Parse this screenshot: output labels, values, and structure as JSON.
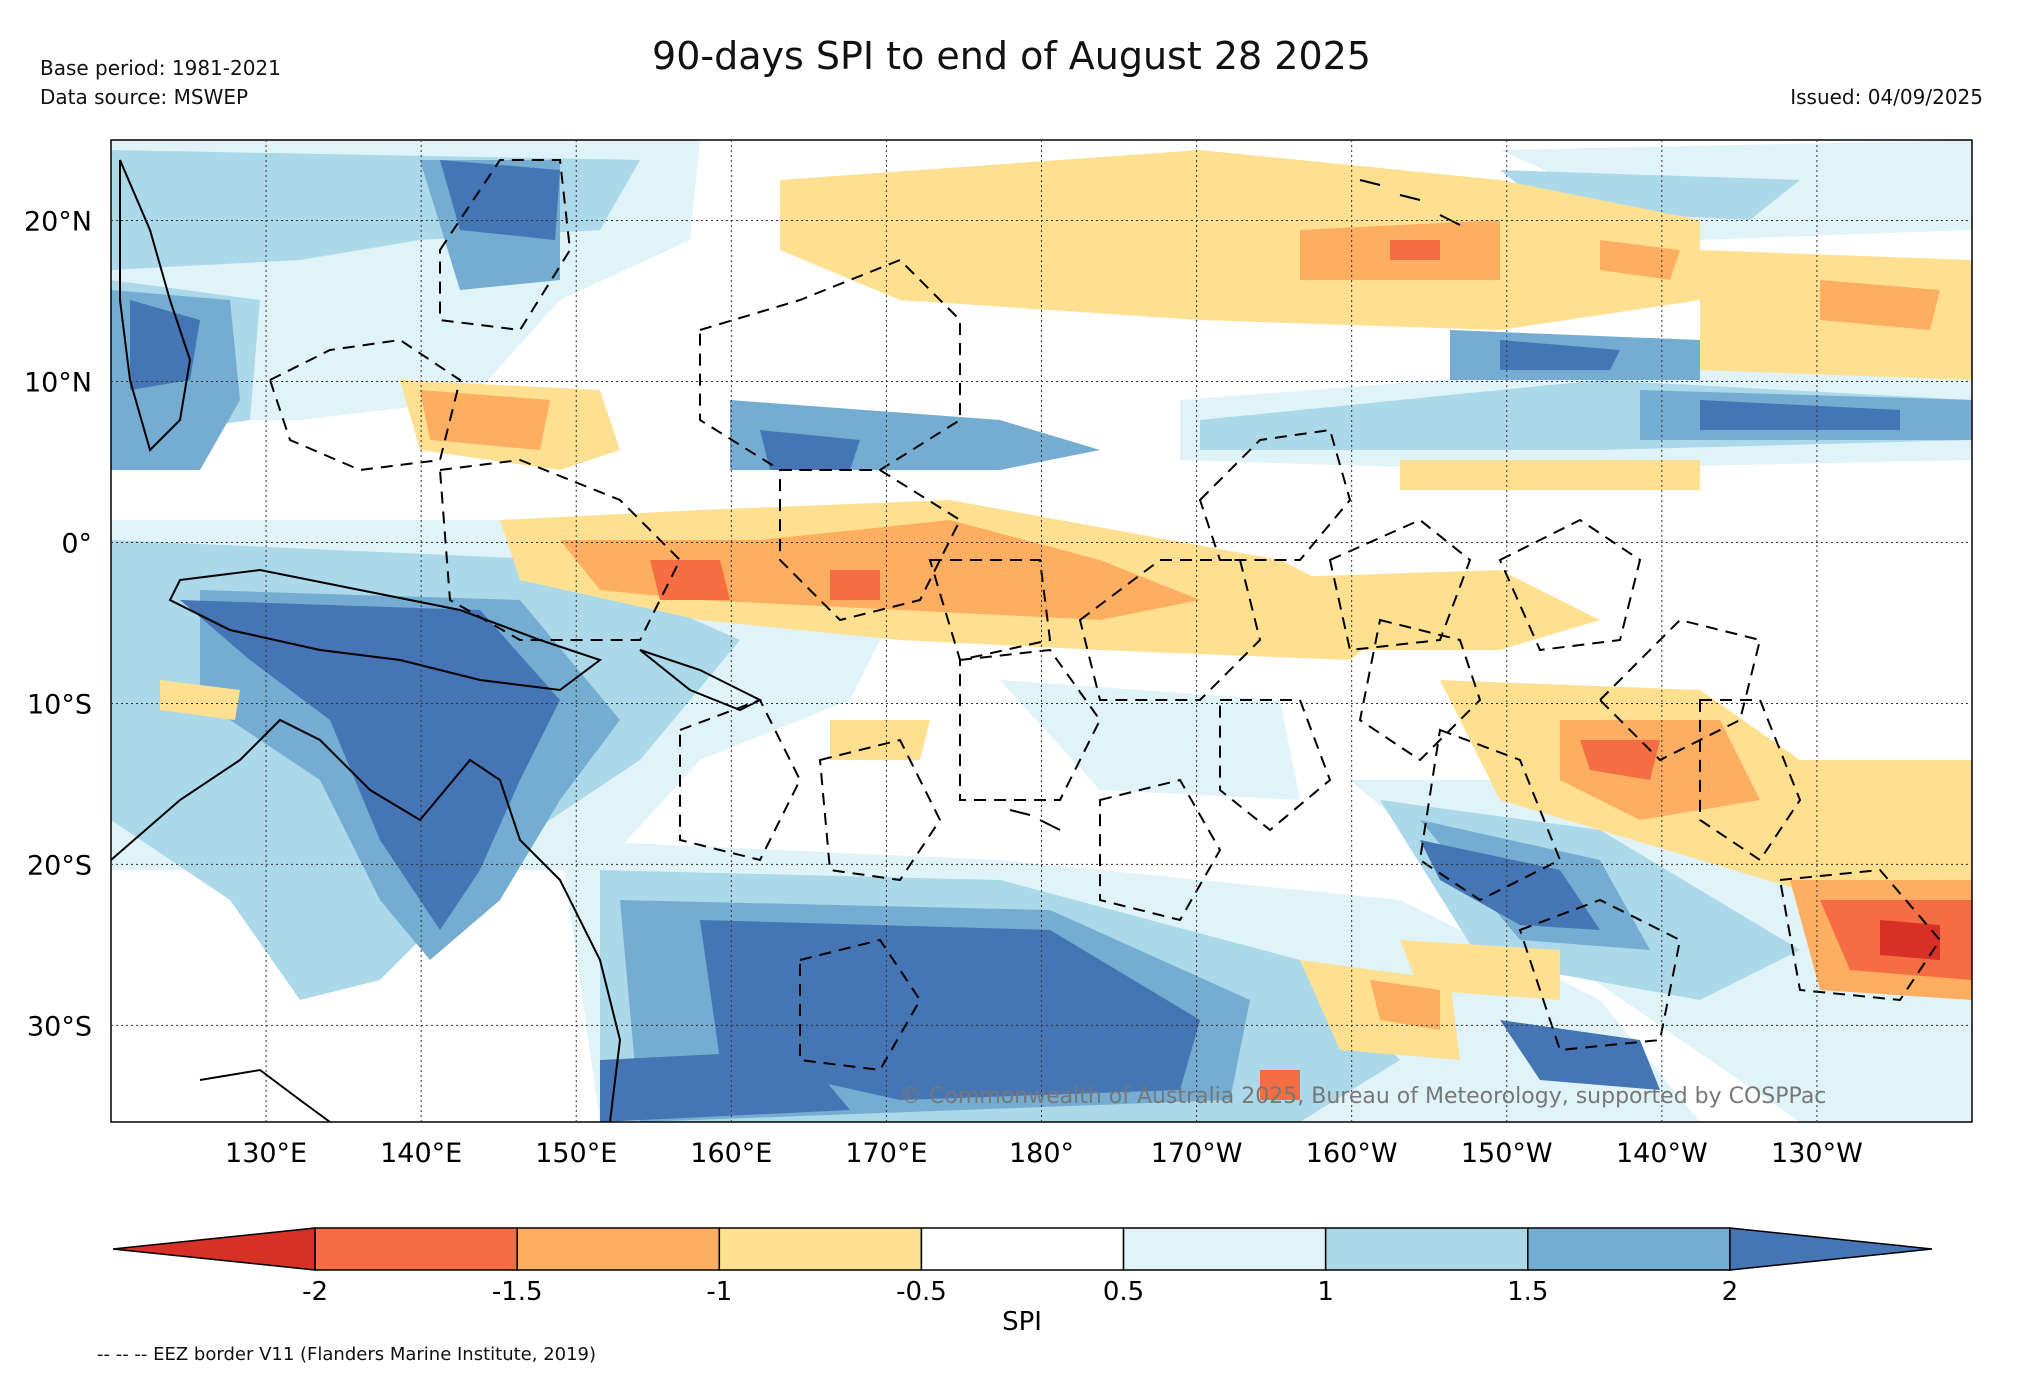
{
  "header": {
    "title": "90-days SPI to end of August 28 2025",
    "base_period": "Base period: 1981-2021",
    "data_source": "Data source: MSWEP",
    "issued": "Issued: 04/09/2025"
  },
  "map": {
    "lon_range": [
      120,
      240
    ],
    "lat_range": [
      -36,
      25
    ],
    "lon_ticks": [
      {
        "value": 130,
        "label": "130°E"
      },
      {
        "value": 140,
        "label": "140°E"
      },
      {
        "value": 150,
        "label": "150°E"
      },
      {
        "value": 160,
        "label": "160°E"
      },
      {
        "value": 170,
        "label": "170°E"
      },
      {
        "value": 180,
        "label": "180°"
      },
      {
        "value": 190,
        "label": "170°W"
      },
      {
        "value": 200,
        "label": "160°W"
      },
      {
        "value": 210,
        "label": "150°W"
      },
      {
        "value": 220,
        "label": "140°W"
      },
      {
        "value": 230,
        "label": "130°W"
      }
    ],
    "lat_ticks": [
      {
        "value": 20,
        "label": "20°N"
      },
      {
        "value": 10,
        "label": "10°N"
      },
      {
        "value": 0,
        "label": "0°"
      },
      {
        "value": -10,
        "label": "10°S"
      },
      {
        "value": -20,
        "label": "20°S"
      },
      {
        "value": -30,
        "label": "30°S"
      }
    ],
    "copyright": "© Commonwealth of Australia 2025, Bureau of Meteorology, supported by COSPPac"
  },
  "colorbar": {
    "label": "SPI",
    "ticks": [
      "-2",
      "-1.5",
      "-1",
      "-0.5",
      "0.5",
      "1",
      "1.5",
      "2"
    ],
    "colors": [
      "#d73027",
      "#f46d43",
      "#fdae61",
      "#fee090",
      "#ffffff",
      "#e0f3f8",
      "#abd9e9",
      "#74add1",
      "#4575b4"
    ]
  },
  "footnote": "-- -- -- EEZ border V11 (Flanders Marine Institute, 2019)"
}
